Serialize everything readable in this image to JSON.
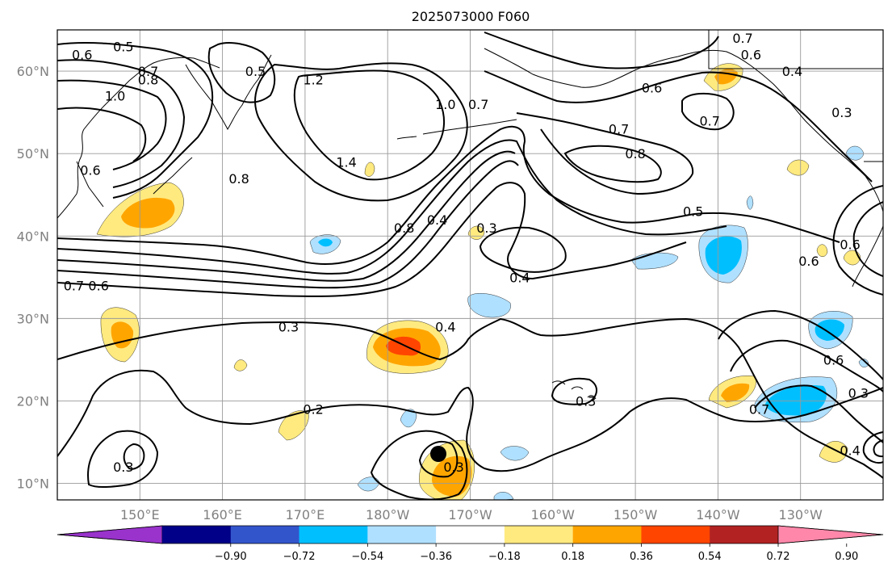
{
  "title": "2025073000 F060",
  "lat_labels": [
    {
      "label": "60°N",
      "lat": 60
    },
    {
      "label": "50°N",
      "lat": 50
    },
    {
      "label": "40°N",
      "lat": 40
    },
    {
      "label": "30°N",
      "lat": 30
    },
    {
      "label": "20°N",
      "lat": 20
    },
    {
      "label": "10°N",
      "lat": 10
    }
  ],
  "lon_labels": [
    {
      "label": "150°E",
      "lon": 150
    },
    {
      "label": "160°E",
      "lon": 160
    },
    {
      "label": "170°E",
      "lon": 170
    },
    {
      "label": "180°W",
      "lon": 180
    },
    {
      "label": "170°W",
      "lon": 190
    },
    {
      "label": "160°W",
      "lon": 200
    },
    {
      "label": "150°W",
      "lon": 210
    },
    {
      "label": "140°W",
      "lon": 220
    },
    {
      "label": "130°W",
      "lon": 230
    }
  ],
  "colorbar": {
    "colors": [
      "#9933cc",
      "#000088",
      "#3355cc",
      "#00bfff",
      "#b0e0ff",
      "#ffffff",
      "#ffea80",
      "#ffa500",
      "#ff4500",
      "#b22222",
      "#ff88aa"
    ],
    "tick_labels": [
      "−0.90",
      "−0.72",
      "−0.54",
      "−0.36",
      "−0.18",
      "0.18",
      "0.36",
      "0.54",
      "0.72",
      "0.90"
    ]
  },
  "contour_labels": [
    {
      "text": "0.5",
      "lon": 148,
      "lat": 63
    },
    {
      "text": "0.6",
      "lon": 143,
      "lat": 62
    },
    {
      "text": "0.7",
      "lon": 151,
      "lat": 60
    },
    {
      "text": "0.8",
      "lon": 151,
      "lat": 59
    },
    {
      "text": "1.0",
      "lon": 147,
      "lat": 57
    },
    {
      "text": "0.5",
      "lon": 164,
      "lat": 60
    },
    {
      "text": "1.2",
      "lon": 171,
      "lat": 59
    },
    {
      "text": "1.0",
      "lon": 187,
      "lat": 56
    },
    {
      "text": "0.7",
      "lon": 191,
      "lat": 56
    },
    {
      "text": "0.6",
      "lon": 212,
      "lat": 58
    },
    {
      "text": "0.7",
      "lon": 219,
      "lat": 54
    },
    {
      "text": "0.7",
      "lon": 208,
      "lat": 53
    },
    {
      "text": "0.8",
      "lon": 210,
      "lat": 50
    },
    {
      "text": "0.6",
      "lon": 144,
      "lat": 48
    },
    {
      "text": "0.8",
      "lon": 162,
      "lat": 47
    },
    {
      "text": "1.4",
      "lon": 175,
      "lat": 49
    },
    {
      "text": "0.8",
      "lon": 182,
      "lat": 41
    },
    {
      "text": "0.4",
      "lon": 186,
      "lat": 42
    },
    {
      "text": "0.3",
      "lon": 192,
      "lat": 41
    },
    {
      "text": "0.5",
      "lon": 217,
      "lat": 43
    },
    {
      "text": "0.4",
      "lon": 196,
      "lat": 35
    },
    {
      "text": "0.7",
      "lon": 142,
      "lat": 34
    },
    {
      "text": "0.6",
      "lon": 145,
      "lat": 34
    },
    {
      "text": "0.3",
      "lon": 168,
      "lat": 29
    },
    {
      "text": "0.4",
      "lon": 187,
      "lat": 29
    },
    {
      "text": "0.2",
      "lon": 171,
      "lat": 19
    },
    {
      "text": "0.3",
      "lon": 204,
      "lat": 20
    },
    {
      "text": "0.7",
      "lon": 225,
      "lat": 19
    },
    {
      "text": "0.6",
      "lon": 234,
      "lat": 25
    },
    {
      "text": "0.3",
      "lon": 237,
      "lat": 21
    },
    {
      "text": "0.3",
      "lon": 148,
      "lat": 12
    },
    {
      "text": "0.3",
      "lon": 188,
      "lat": 12
    },
    {
      "text": "0.4",
      "lon": 236,
      "lat": 14
    },
    {
      "text": "0.7",
      "lon": 223,
      "lat": 64
    },
    {
      "text": "0.6",
      "lon": 224,
      "lat": 62
    },
    {
      "text": "0.4",
      "lon": 229,
      "lat": 60
    },
    {
      "text": "0.3",
      "lon": 235,
      "lat": 55
    },
    {
      "text": "0.6",
      "lon": 236,
      "lat": 39
    },
    {
      "text": "0.6",
      "lon": 231,
      "lat": 37
    }
  ]
}
